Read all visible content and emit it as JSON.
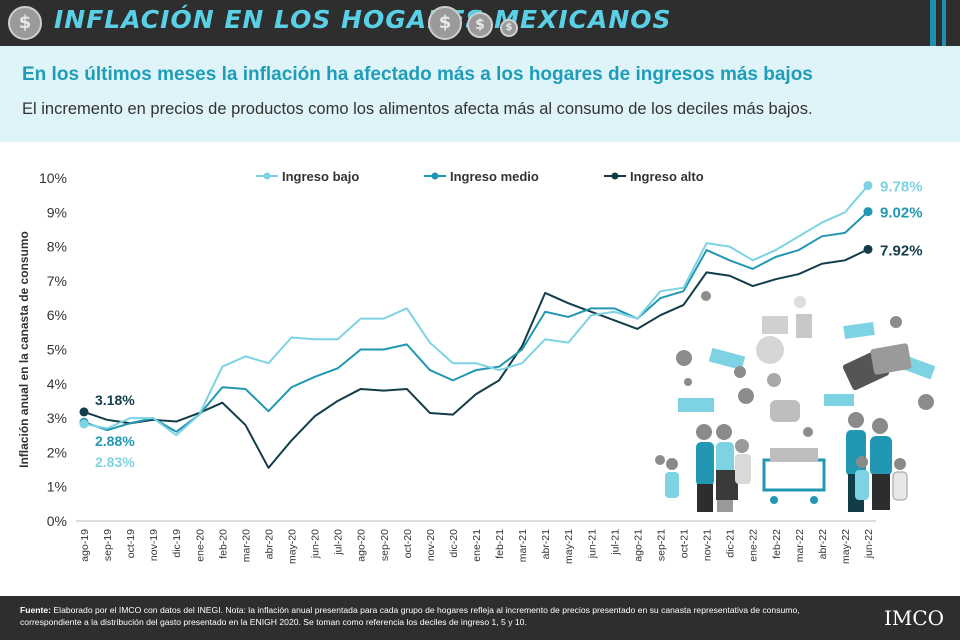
{
  "banner": {
    "title": "Inflación en los hogares mexicanos",
    "coin_glyph": "$",
    "accent_color": "#5ad0e6"
  },
  "headline": "En los últimos meses la inflación ha afectado más a los hogares de ingresos más bajos",
  "subline": "El incremento en precios de productos como los alimentos afecta más al consumo de los deciles más bajos.",
  "footer": {
    "source_label": "Fuente:",
    "source_text": "Elaborado por el IMCO  con datos del INEGI.  Nota: la inflación anual presentada para cada grupo de hogares refleja al incremento de precios presentado en su canasta representativa de consumo, correspondiente a la distribución del gasto presentado en la ENIGH 2020. Se toman como referencia los deciles de ingreso 1, 5 y 10.",
    "logo": "IMCO"
  },
  "chart_data": {
    "type": "line",
    "title": "",
    "xlabel": "",
    "ylabel": "Inflación anual en la canasta de consumo",
    "ylim": [
      0,
      10
    ],
    "yticks": [
      "0%",
      "1%",
      "2%",
      "3%",
      "4%",
      "5%",
      "6%",
      "7%",
      "8%",
      "9%",
      "10%"
    ],
    "grid": false,
    "legend": "top",
    "categories": [
      "ago-19",
      "sep-19",
      "oct-19",
      "nov-19",
      "dic-19",
      "ene-20",
      "feb-20",
      "mar-20",
      "abr-20",
      "may-20",
      "jun-20",
      "jul-20",
      "ago-20",
      "sep-20",
      "oct-20",
      "nov-20",
      "dic-20",
      "ene-21",
      "feb-21",
      "mar-21",
      "abr-21",
      "may-21",
      "jun-21",
      "jul-21",
      "ago-21",
      "sep-21",
      "oct-21",
      "nov-21",
      "dic-21",
      "ene-22",
      "feb-22",
      "mar-22",
      "abr-22",
      "may-22",
      "jun-22"
    ],
    "series": [
      {
        "name": "Ingreso bajo",
        "color": "#7dd3e3",
        "start_label": "2.83%",
        "end_label": "9.78%",
        "values": [
          2.83,
          2.7,
          3.0,
          3.0,
          2.5,
          3.1,
          4.5,
          4.8,
          4.6,
          5.35,
          5.3,
          5.3,
          5.9,
          5.9,
          6.2,
          5.2,
          4.6,
          4.6,
          4.4,
          4.6,
          5.3,
          5.2,
          6.0,
          6.1,
          5.9,
          6.7,
          6.8,
          8.1,
          8.0,
          7.6,
          7.9,
          8.3,
          8.7,
          9.0,
          9.78
        ]
      },
      {
        "name": "Ingreso medio",
        "color": "#2197b1",
        "start_label": "2.88%",
        "end_label": "9.02%",
        "values": [
          2.88,
          2.65,
          2.85,
          3.0,
          2.6,
          3.1,
          3.9,
          3.85,
          3.2,
          3.9,
          4.2,
          4.45,
          5.0,
          5.0,
          5.15,
          4.4,
          4.1,
          4.4,
          4.5,
          5.0,
          6.1,
          5.95,
          6.2,
          6.2,
          5.9,
          6.5,
          6.7,
          7.9,
          7.6,
          7.35,
          7.7,
          7.9,
          8.3,
          8.4,
          9.02
        ]
      },
      {
        "name": "Ingreso alto",
        "color": "#123c48",
        "start_label": "3.18%",
        "end_label": "7.92%",
        "values": [
          3.18,
          2.95,
          2.85,
          2.95,
          2.9,
          3.15,
          3.45,
          2.8,
          1.55,
          2.35,
          3.05,
          3.5,
          3.85,
          3.8,
          3.85,
          3.15,
          3.1,
          3.7,
          4.1,
          5.1,
          6.65,
          6.35,
          6.1,
          5.85,
          5.6,
          6.0,
          6.3,
          7.25,
          7.15,
          6.85,
          7.05,
          7.2,
          7.5,
          7.6,
          7.92
        ]
      }
    ]
  }
}
